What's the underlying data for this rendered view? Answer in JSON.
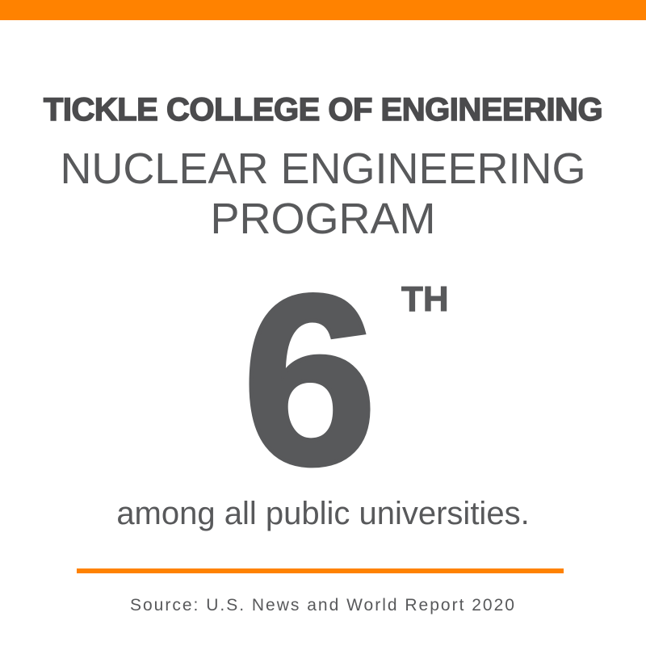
{
  "colors": {
    "accent": "#ff8200",
    "text": "#58595b"
  },
  "college": "TICKLE COLLEGE OF ENGINEERING",
  "program_line1": "NUCLEAR ENGINEERING",
  "program_line2": "PROGRAM",
  "rank": "6",
  "rank_suffix": "TH",
  "subtitle": "among all public universities.",
  "source": "Source: U.S. News and World Report 2020"
}
